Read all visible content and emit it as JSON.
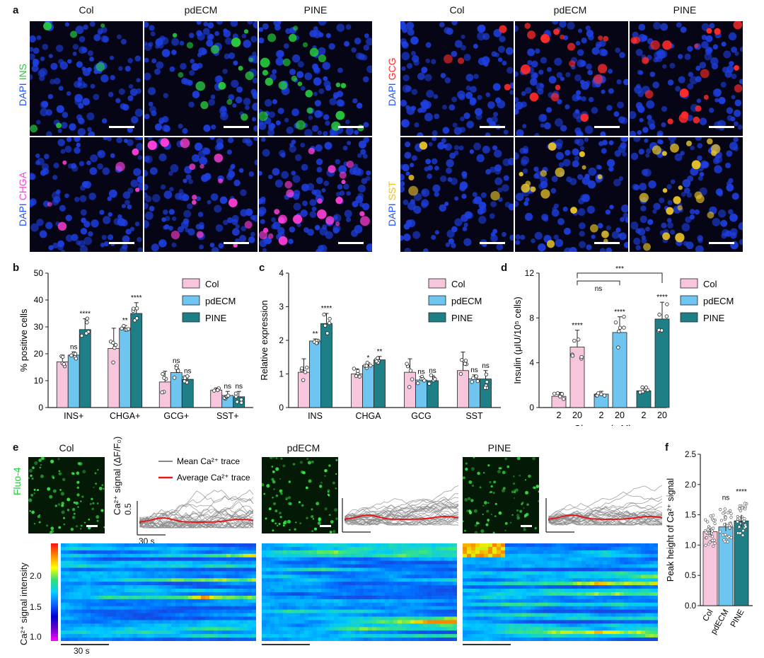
{
  "panel_letters": {
    "a": "a",
    "b": "b",
    "c": "c",
    "d": "d",
    "e": "e",
    "f": "f"
  },
  "panel_a": {
    "columns": [
      "Col",
      "pdECM",
      "PINE"
    ],
    "row_labels": {
      "ins": {
        "dapi": "DAPI",
        "stain": "INS",
        "stain_color": "#27c93f"
      },
      "chga": {
        "dapi": "DAPI",
        "stain": "CHGA",
        "stain_color": "#ff3fd9"
      },
      "gcg": {
        "dapi": "DAPI",
        "stain": "GCG",
        "stain_color": "#ff2b2b"
      },
      "sst": {
        "dapi": "DAPI",
        "stain": "SST",
        "stain_color": "#e6c12a"
      }
    },
    "dapi_color": "#2454ff"
  },
  "chart_data": [
    {
      "id": "b",
      "type": "bar",
      "ylabel": "% positive cells",
      "ylim": [
        0,
        50
      ],
      "yticks": [
        0,
        10,
        20,
        30,
        40,
        50
      ],
      "categories": [
        "INS+",
        "CHGA+",
        "GCG+",
        "SST+"
      ],
      "series": [
        {
          "name": "Col",
          "color": "#f7c6dd",
          "values": [
            17,
            22,
            9.5,
            6.5
          ],
          "errors": [
            2.5,
            7.5,
            4,
            0.8
          ]
        },
        {
          "name": "pdECM",
          "color": "#6ec6f0",
          "values": [
            19.5,
            29.5,
            13,
            4.5
          ],
          "errors": [
            1.2,
            1,
            2.5,
            1.5
          ]
        },
        {
          "name": "PINE",
          "color": "#1f7f86",
          "values": [
            29,
            35,
            10.5,
            4
          ],
          "errors": [
            4,
            4,
            1.2,
            2
          ]
        }
      ],
      "annotations": [
        [
          "",
          "ns",
          "****"
        ],
        [
          "",
          "**",
          "****"
        ],
        [
          "",
          "ns",
          "ns"
        ],
        [
          "",
          "ns",
          "ns"
        ]
      ]
    },
    {
      "id": "c",
      "type": "bar",
      "ylabel": "Relative expression",
      "ylim": [
        0,
        4
      ],
      "yticks": [
        0,
        1,
        2,
        3,
        4
      ],
      "categories": [
        "INS",
        "CHGA",
        "GCG",
        "SST"
      ],
      "series": [
        {
          "name": "Col",
          "color": "#f7c6dd",
          "values": [
            1.05,
            1.0,
            1.05,
            1.1
          ],
          "errors": [
            0.4,
            0.15,
            0.4,
            0.55
          ]
        },
        {
          "name": "pdECM",
          "color": "#6ec6f0",
          "values": [
            1.98,
            1.25,
            0.82,
            0.85
          ],
          "errors": [
            0.06,
            0.08,
            0.1,
            0.12
          ]
        },
        {
          "name": "PINE",
          "color": "#1f7f86",
          "values": [
            2.5,
            1.42,
            0.8,
            0.85
          ],
          "errors": [
            0.3,
            0.1,
            0.15,
            0.25
          ]
        }
      ],
      "annotations": [
        [
          "",
          "**",
          "****"
        ],
        [
          "",
          "*",
          "**"
        ],
        [
          "",
          "ns",
          "ns"
        ],
        [
          "",
          "ns",
          "ns"
        ]
      ]
    },
    {
      "id": "d",
      "type": "bar",
      "ylabel": "Insulin (μIU/10⁵ cells)",
      "xlabel": "Glucose (mM)",
      "ylim": [
        0,
        12
      ],
      "yticks": [
        0,
        4,
        8,
        12
      ],
      "groups": [
        {
          "name": "Col",
          "color": "#f7c6dd",
          "bars": [
            {
              "x": "2",
              "value": 1.0,
              "error": 0.35,
              "ann": ""
            },
            {
              "x": "20",
              "value": 5.4,
              "error": 1.5,
              "ann": "****"
            }
          ]
        },
        {
          "name": "pdECM",
          "color": "#6ec6f0",
          "bars": [
            {
              "x": "2",
              "value": 1.2,
              "error": 0.25,
              "ann": ""
            },
            {
              "x": "20",
              "value": 6.7,
              "error": 1.4,
              "ann": "****"
            }
          ]
        },
        {
          "name": "PINE",
          "color": "#1f7f86",
          "bars": [
            {
              "x": "2",
              "value": 1.5,
              "error": 0.3,
              "ann": ""
            },
            {
              "x": "20",
              "value": 7.9,
              "error": 1.5,
              "ann": "****"
            }
          ]
        }
      ],
      "brackets": [
        {
          "label": "ns"
        },
        {
          "label": "***"
        }
      ]
    },
    {
      "id": "f",
      "type": "bar",
      "ylabel": "Peak height of Ca²⁺ signal",
      "ylim": [
        0,
        2.5
      ],
      "yticks": [
        0.0,
        0.5,
        1.0,
        1.5,
        2.0,
        2.5
      ],
      "categories": [
        "Col",
        "pdECM",
        "PINE"
      ],
      "colors": [
        "#f7c6dd",
        "#6ec6f0",
        "#1f7f86"
      ],
      "values": [
        1.22,
        1.3,
        1.4
      ],
      "errors": [
        0.06,
        0.07,
        0.1
      ],
      "annotations": [
        "",
        "ns",
        "****"
      ]
    }
  ],
  "legend": [
    "Col",
    "pdECM",
    "PINE"
  ],
  "panel_e": {
    "groups": [
      "Col",
      "pdECM",
      "PINE"
    ],
    "fluo_label": "Fluo-4",
    "trace_ylabel": "Ca²⁺ signal (ΔF/F₀)",
    "trace_scale_y": "0.5",
    "trace_scale_x": "30 s",
    "legend_mean": "Mean Ca²⁺ trace",
    "legend_avg": "Average Ca²⁺ trace",
    "heat_ylabel": "Ca²⁺ signal intensity",
    "heat_ticks": [
      "2.0",
      "1.5",
      "1.0"
    ],
    "heat_scale": "30 s"
  }
}
